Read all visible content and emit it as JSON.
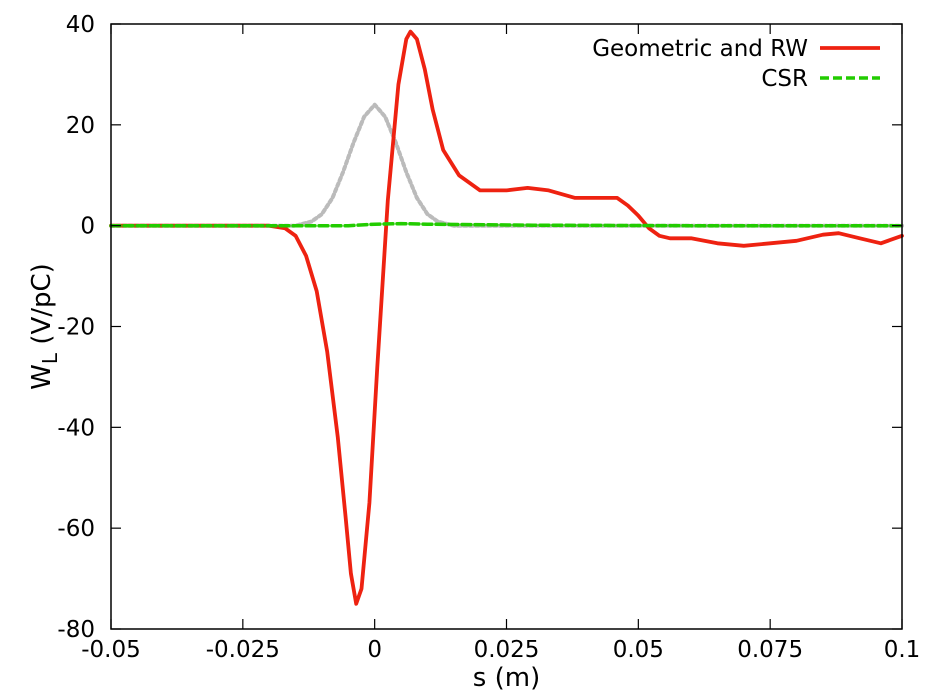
{
  "chart_data": {
    "type": "line",
    "title": "",
    "xlabel": "s (m)",
    "ylabel_main": "W",
    "ylabel_sub": "L",
    "ylabel_rest": " (V/pC)",
    "xlim": [
      -0.05,
      0.1
    ],
    "ylim": [
      -80,
      40
    ],
    "grid": false,
    "legend_position": "top-right",
    "x_ticks": [
      -0.05,
      -0.025,
      0,
      0.025,
      0.05,
      0.075,
      0.1
    ],
    "x_tick_labels": [
      "-0.05",
      "-0.025",
      "0",
      "0.025",
      "0.05",
      "0.075",
      "0.1"
    ],
    "y_ticks": [
      -80,
      -60,
      -40,
      -20,
      0,
      20,
      40
    ],
    "y_tick_labels": [
      "-80",
      "-60",
      "-40",
      "-20",
      "0",
      "20",
      "40"
    ],
    "series": [
      {
        "name": "Geometric and RW",
        "color": "#ee2211",
        "style": "solid",
        "x": [
          -0.05,
          -0.02,
          -0.017,
          -0.015,
          -0.013,
          -0.011,
          -0.009,
          -0.007,
          -0.0055,
          -0.0045,
          -0.0035,
          -0.0025,
          -0.001,
          0.0005,
          0.0025,
          0.0045,
          0.006,
          0.0068,
          0.008,
          0.0095,
          0.011,
          0.013,
          0.016,
          0.02,
          0.025,
          0.029,
          0.033,
          0.038,
          0.043,
          0.046,
          0.048,
          0.05,
          0.052,
          0.054,
          0.056,
          0.06,
          0.065,
          0.07,
          0.075,
          0.08,
          0.085,
          0.088,
          0.092,
          0.096,
          0.1
        ],
        "y": [
          0,
          0,
          -0.5,
          -2,
          -6,
          -13,
          -25,
          -42,
          -58,
          -69,
          -75,
          -72,
          -55,
          -28,
          5,
          28,
          37,
          38.5,
          37,
          31,
          23,
          15,
          10,
          7,
          7,
          7.5,
          7,
          5.5,
          5.5,
          5.5,
          4,
          2,
          -0.5,
          -2,
          -2.5,
          -2.5,
          -3.5,
          -4,
          -3.5,
          -3,
          -1.8,
          -1.5,
          -2.5,
          -3.5,
          -2
        ]
      },
      {
        "name": "CSR",
        "color": "#22cc00",
        "style": "dashed",
        "x": [
          -0.05,
          -0.01,
          -0.005,
          0,
          0.005,
          0.01,
          0.03,
          0.06,
          0.1
        ],
        "y": [
          0,
          0,
          0,
          0.3,
          0.4,
          0.3,
          0.1,
          0,
          0
        ]
      },
      {
        "name": "",
        "color": "#bbbbbb",
        "style": "dotted",
        "x": [
          -0.05,
          -0.015,
          -0.012,
          -0.01,
          -0.008,
          -0.006,
          -0.004,
          -0.002,
          0,
          0.002,
          0.004,
          0.006,
          0.008,
          0.01,
          0.012,
          0.015,
          0.1
        ],
        "y": [
          0,
          0,
          0.8,
          2.3,
          5.5,
          10.6,
          16.5,
          21.6,
          24,
          21.6,
          16.5,
          10.6,
          5.5,
          2.3,
          0.8,
          0,
          0
        ]
      }
    ]
  }
}
